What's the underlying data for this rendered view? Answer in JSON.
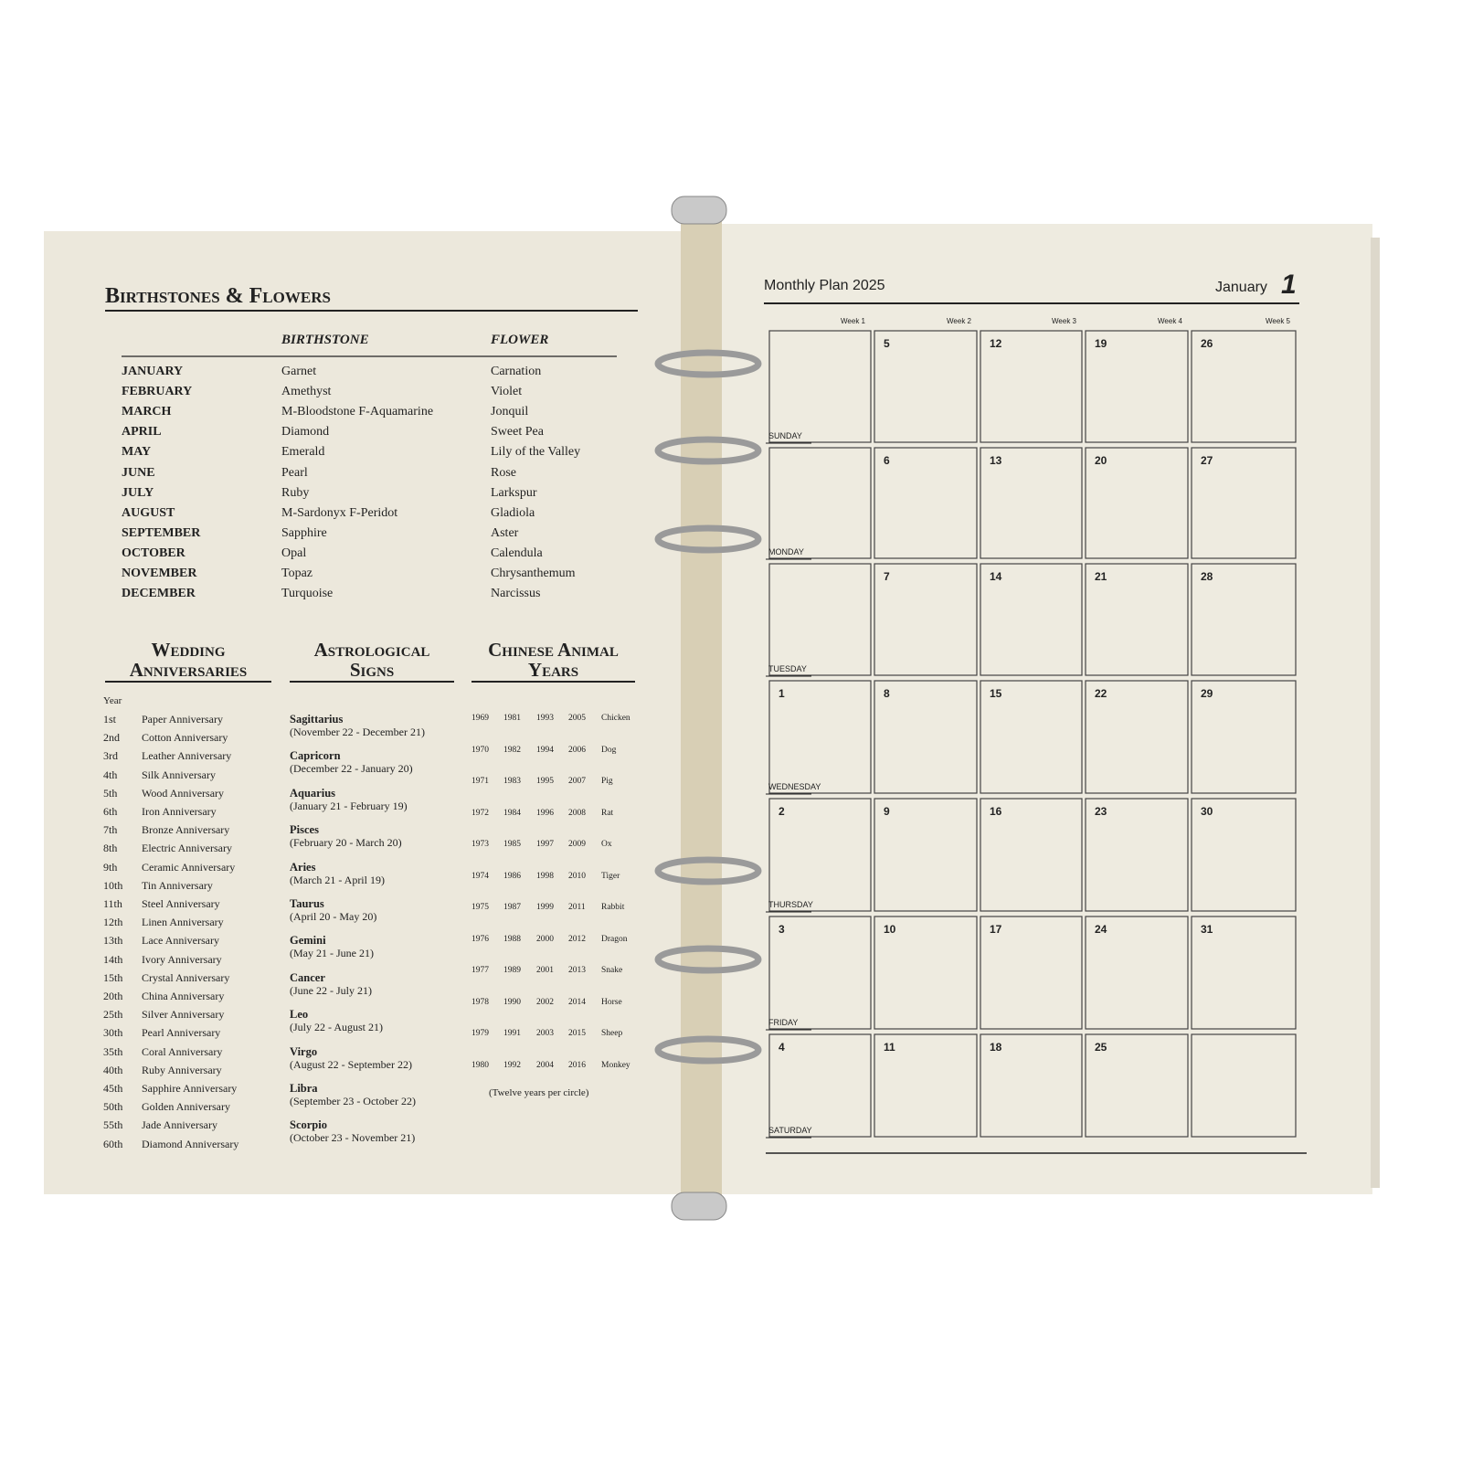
{
  "left_page": {
    "birthstones": {
      "title": "Birthstones & Flowers",
      "headers": [
        "BIRTHSTONE",
        "FLOWER"
      ],
      "rows": [
        [
          "JANUARY",
          "Garnet",
          "Carnation"
        ],
        [
          "FEBRUARY",
          "Amethyst",
          "Violet"
        ],
        [
          "MARCH",
          "M-Bloodstone  F-Aquamarine",
          "Jonquil"
        ],
        [
          "APRIL",
          "Diamond",
          "Sweet Pea"
        ],
        [
          "MAY",
          "Emerald",
          "Lily of the Valley"
        ],
        [
          "JUNE",
          "Pearl",
          "Rose"
        ],
        [
          "JULY",
          "Ruby",
          "Larkspur"
        ],
        [
          "AUGUST",
          "M-Sardonyx  F-Peridot",
          "Gladiola"
        ],
        [
          "SEPTEMBER",
          "Sapphire",
          "Aster"
        ],
        [
          "OCTOBER",
          "Opal",
          "Calendula"
        ],
        [
          "NOVEMBER",
          "Topaz",
          "Chrysanthemum"
        ],
        [
          "DECEMBER",
          "Turquoise",
          "Narcissus"
        ]
      ]
    },
    "wedding": {
      "title": "Wedding Anniversaries",
      "column_header": "Year",
      "rows": [
        [
          "1st",
          "Paper Anniversary"
        ],
        [
          "2nd",
          "Cotton Anniversary"
        ],
        [
          "3rd",
          "Leather Anniversary"
        ],
        [
          "4th",
          "Silk Anniversary"
        ],
        [
          "5th",
          "Wood Anniversary"
        ],
        [
          "6th",
          "Iron Anniversary"
        ],
        [
          "7th",
          "Bronze Anniversary"
        ],
        [
          "8th",
          "Electric Anniversary"
        ],
        [
          "9th",
          "Ceramic Anniversary"
        ],
        [
          "10th",
          "Tin Anniversary"
        ],
        [
          "11th",
          "Steel Anniversary"
        ],
        [
          "12th",
          "Linen Anniversary"
        ],
        [
          "13th",
          "Lace Anniversary"
        ],
        [
          "14th",
          "Ivory Anniversary"
        ],
        [
          "15th",
          "Crystal Anniversary"
        ],
        [
          "20th",
          "China Anniversary"
        ],
        [
          "25th",
          "Silver Anniversary"
        ],
        [
          "30th",
          "Pearl Anniversary"
        ],
        [
          "35th",
          "Coral Anniversary"
        ],
        [
          "40th",
          "Ruby Anniversary"
        ],
        [
          "45th",
          "Sapphire Anniversary"
        ],
        [
          "50th",
          "Golden Anniversary"
        ],
        [
          "55th",
          "Jade Anniversary"
        ],
        [
          "60th",
          "Diamond Anniversary"
        ]
      ]
    },
    "astrological": {
      "title": "Astrological Signs",
      "rows": [
        [
          "Sagittarius",
          "(November 22 - December 21)"
        ],
        [
          "Capricorn",
          "(December 22 - January 20)"
        ],
        [
          "Aquarius",
          "(January 21 - February 19)"
        ],
        [
          "Pisces",
          "(February 20 - March 20)"
        ],
        [
          "Aries",
          "(March 21 - April 19)"
        ],
        [
          "Taurus",
          "(April 20 - May 20)"
        ],
        [
          "Gemini",
          "(May 21 - June 21)"
        ],
        [
          "Cancer",
          "(June 22 - July 21)"
        ],
        [
          "Leo",
          "(July 22 - August 21)"
        ],
        [
          "Virgo",
          "(August 22 - September 22)"
        ],
        [
          "Libra",
          "(September 23 - October 22)"
        ],
        [
          "Scorpio",
          "(October 23 - November 21)"
        ]
      ]
    },
    "chinese": {
      "title": "Chinese Animal Years",
      "rows": [
        [
          1969,
          1981,
          1993,
          2005,
          "Chicken"
        ],
        [
          1970,
          1982,
          1994,
          2006,
          "Dog"
        ],
        [
          1971,
          1983,
          1995,
          2007,
          "Pig"
        ],
        [
          1972,
          1984,
          1996,
          2008,
          "Rat"
        ],
        [
          1973,
          1985,
          1997,
          2009,
          "Ox"
        ],
        [
          1974,
          1986,
          1998,
          2010,
          "Tiger"
        ],
        [
          1975,
          1987,
          1999,
          2011,
          "Rabbit"
        ],
        [
          1976,
          1988,
          2000,
          2012,
          "Dragon"
        ],
        [
          1977,
          1989,
          2001,
          2013,
          "Snake"
        ],
        [
          1978,
          1990,
          2002,
          2014,
          "Horse"
        ],
        [
          1979,
          1991,
          2003,
          2015,
          "Sheep"
        ],
        [
          1980,
          1992,
          2004,
          2016,
          "Monkey"
        ]
      ],
      "note": "(Twelve years per circle)"
    }
  },
  "right_page": {
    "title": "Monthly Plan 2025",
    "month": "January",
    "page_number": 1,
    "weeks": [
      "Week 1",
      "Week 2",
      "Week 3",
      "Week 4",
      "Week 5"
    ],
    "days": [
      {
        "name": "SUNDAY",
        "dates": [
          null,
          5,
          12,
          19,
          26
        ]
      },
      {
        "name": "MONDAY",
        "dates": [
          null,
          6,
          13,
          20,
          27
        ]
      },
      {
        "name": "TUESDAY",
        "dates": [
          null,
          7,
          14,
          21,
          28
        ]
      },
      {
        "name": "WEDNESDAY",
        "dates": [
          1,
          8,
          15,
          22,
          29
        ]
      },
      {
        "name": "THURSDAY",
        "dates": [
          2,
          9,
          16,
          23,
          30
        ]
      },
      {
        "name": "FRIDAY",
        "dates": [
          3,
          10,
          17,
          24,
          31
        ]
      },
      {
        "name": "SATURDAY",
        "dates": [
          4,
          11,
          18,
          25,
          null
        ]
      }
    ]
  }
}
